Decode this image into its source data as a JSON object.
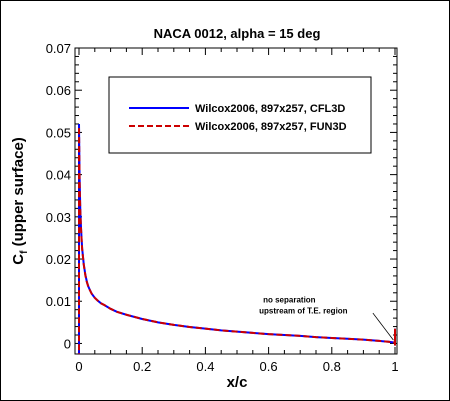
{
  "chart_data": {
    "type": "line",
    "title": "NACA 0012, alpha = 15 deg",
    "xlabel": "x/c",
    "ylabel_main": "C",
    "ylabel_sub": "f",
    "ylabel_rest": " (upper surface)",
    "xlim": [
      0,
      1
    ],
    "ylim": [
      -0.0025,
      0.07
    ],
    "xticks": [
      0,
      0.2,
      0.4,
      0.6,
      0.8,
      1
    ],
    "xtick_labels": [
      "0",
      "0.2",
      "0.4",
      "0.6",
      "0.8",
      "1"
    ],
    "yticks": [
      0,
      0.01,
      0.02,
      0.03,
      0.04,
      0.05,
      0.06,
      0.07
    ],
    "ytick_labels": [
      "0",
      "0.01",
      "0.02",
      "0.03",
      "0.04",
      "0.05",
      "0.06",
      "0.07"
    ],
    "grid": false,
    "legend_placement": "top-right",
    "annotation": {
      "line1": "no separation",
      "line2": "upstream of T.E. region",
      "text_at": [
        0.57,
        0.0097
      ],
      "arrow_from": [
        0.93,
        0.0072
      ],
      "arrow_to": [
        0.995,
        0.0008
      ]
    },
    "series": [
      {
        "name": "Wilcox2006, 897x257, CFL3D",
        "color": "#0000ff",
        "dash": "solid",
        "x": [
          0,
          0.001,
          0.002,
          0.004,
          0.006,
          0.008,
          0.01,
          0.015,
          0.02,
          0.025,
          0.03,
          0.04,
          0.05,
          0.06,
          0.07,
          0.08,
          0.1,
          0.12,
          0.15,
          0.2,
          0.25,
          0.3,
          0.35,
          0.4,
          0.45,
          0.5,
          0.55,
          0.6,
          0.65,
          0.7,
          0.75,
          0.8,
          0.85,
          0.9,
          0.95,
          0.98,
          1.0
        ],
        "y": [
          0.052,
          0.045,
          0.039,
          0.032,
          0.028,
          0.025,
          0.0225,
          0.0188,
          0.0163,
          0.0146,
          0.0134,
          0.0118,
          0.0108,
          0.0101,
          0.0095,
          0.0091,
          0.0082,
          0.0075,
          0.0068,
          0.0058,
          0.005,
          0.0044,
          0.0039,
          0.0035,
          0.0031,
          0.0028,
          0.0025,
          0.0022,
          0.002,
          0.0018,
          0.0015,
          0.0013,
          0.0011,
          0.0009,
          0.0006,
          0.0004,
          0.0002
        ]
      },
      {
        "name": "Wilcox2006, 897x257, FUN3D",
        "color": "#cc0000",
        "dash": "dashed",
        "x": [
          0,
          0.001,
          0.002,
          0.004,
          0.006,
          0.008,
          0.01,
          0.015,
          0.02,
          0.025,
          0.03,
          0.04,
          0.05,
          0.06,
          0.07,
          0.08,
          0.1,
          0.12,
          0.15,
          0.2,
          0.25,
          0.3,
          0.35,
          0.4,
          0.45,
          0.5,
          0.55,
          0.6,
          0.65,
          0.7,
          0.75,
          0.8,
          0.85,
          0.9,
          0.95,
          0.98,
          1.0
        ],
        "y": [
          0.051,
          0.044,
          0.038,
          0.0315,
          0.0278,
          0.0248,
          0.0223,
          0.0187,
          0.0162,
          0.0145,
          0.0133,
          0.0118,
          0.0108,
          0.0101,
          0.0095,
          0.0091,
          0.0082,
          0.0075,
          0.0068,
          0.0058,
          0.005,
          0.0044,
          0.0039,
          0.0035,
          0.0031,
          0.0028,
          0.0025,
          0.0022,
          0.002,
          0.0018,
          0.0015,
          0.0013,
          0.0011,
          0.0009,
          0.0006,
          0.0004,
          0.0002
        ]
      }
    ]
  }
}
